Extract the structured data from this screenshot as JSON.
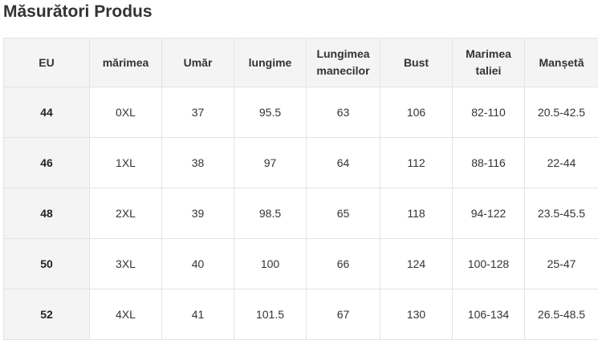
{
  "title": "Măsurători Produs",
  "table": {
    "headers": [
      "EU",
      "mărimea",
      "Umăr",
      "lungime",
      "Lungimea manecilor",
      "Bust",
      "Marimea taliei",
      "Manșetă"
    ],
    "rows": [
      [
        "44",
        "0XL",
        "37",
        "95.5",
        "63",
        "106",
        "82-110",
        "20.5-42.5"
      ],
      [
        "46",
        "1XL",
        "38",
        "97",
        "64",
        "112",
        "88-116",
        "22-44"
      ],
      [
        "48",
        "2XL",
        "39",
        "98.5",
        "65",
        "118",
        "94-122",
        "23.5-45.5"
      ],
      [
        "50",
        "3XL",
        "40",
        "100",
        "66",
        "124",
        "100-128",
        "25-47"
      ],
      [
        "52",
        "4XL",
        "41",
        "101.5",
        "67",
        "130",
        "106-134",
        "26.5-48.5"
      ]
    ]
  }
}
